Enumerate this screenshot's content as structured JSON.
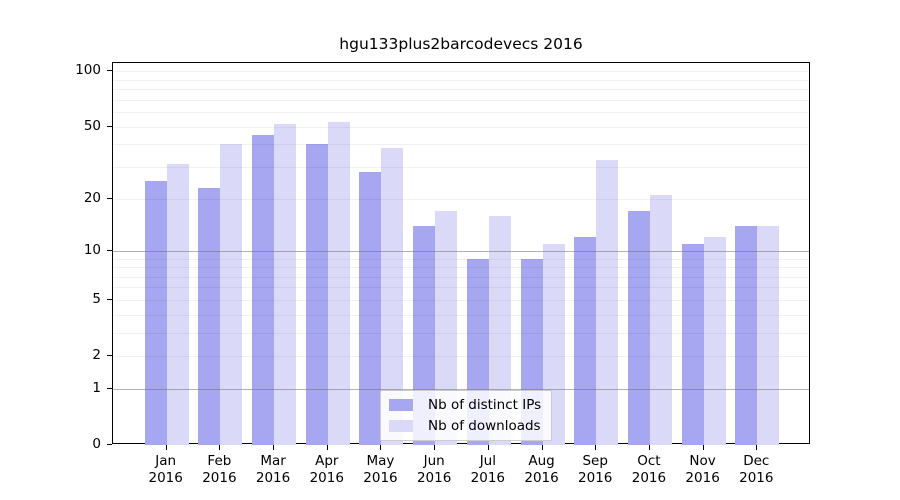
{
  "title": "hgu133plus2barcodevecs 2016",
  "chart_data": {
    "type": "bar",
    "title": "hgu133plus2barcodevecs 2016",
    "categories": [
      {
        "month": "Jan",
        "year": "2016"
      },
      {
        "month": "Feb",
        "year": "2016"
      },
      {
        "month": "Mar",
        "year": "2016"
      },
      {
        "month": "Apr",
        "year": "2016"
      },
      {
        "month": "May",
        "year": "2016"
      },
      {
        "month": "Jun",
        "year": "2016"
      },
      {
        "month": "Jul",
        "year": "2016"
      },
      {
        "month": "Aug",
        "year": "2016"
      },
      {
        "month": "Sep",
        "year": "2016"
      },
      {
        "month": "Oct",
        "year": "2016"
      },
      {
        "month": "Nov",
        "year": "2016"
      },
      {
        "month": "Dec",
        "year": "2016"
      }
    ],
    "series": [
      {
        "name": "Nb of distinct IPs",
        "color": "#a6a6f1",
        "values": [
          25,
          23,
          45,
          40,
          28,
          14,
          9,
          9,
          12,
          17,
          11,
          14
        ]
      },
      {
        "name": "Nb of downloads",
        "color": "#dadaf8",
        "values": [
          31,
          40,
          52,
          53,
          38,
          17,
          16,
          11,
          33,
          21,
          12,
          14
        ]
      }
    ],
    "xlabel": "",
    "ylabel": "",
    "y_scale": "log10(value+1)",
    "ylim": [
      0,
      111
    ],
    "y_ticks": [
      0,
      1,
      2,
      5,
      10,
      20,
      50,
      100
    ],
    "y_gridlines_major": [
      1,
      10
    ],
    "y_gridlines_minor": [
      2,
      3,
      4,
      5,
      6,
      7,
      8,
      9,
      20,
      30,
      40,
      50,
      60,
      70,
      80,
      90,
      100
    ],
    "grid": true,
    "legend_position": "bottom-center-inside"
  },
  "legend": {
    "items": [
      {
        "label": "Nb of distinct IPs",
        "color": "#a6a6f1"
      },
      {
        "label": "Nb of downloads",
        "color": "#dadaf8"
      }
    ]
  },
  "colors": {
    "background": "#ffffff",
    "axis": "#000000",
    "bar_distinct_ips": "#a6a6f1",
    "bar_downloads": "#dadaf8",
    "grid_major": "#b5b5b5",
    "grid_minor": "#ececec",
    "legend_border": "#cccccc"
  }
}
